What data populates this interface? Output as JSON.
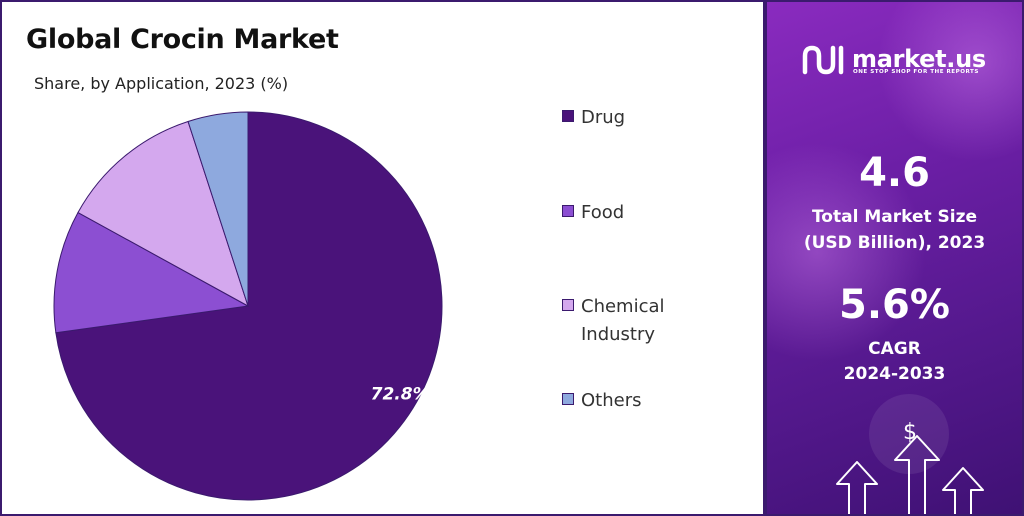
{
  "header": {
    "title": "Global Crocin Market",
    "subtitle": "Share, by Application, 2023 (%)"
  },
  "chart_data": {
    "type": "pie",
    "categories": [
      "Drug",
      "Food",
      "Chemical Industry",
      "Others"
    ],
    "values": [
      72.8,
      10.2,
      12.0,
      5.0
    ],
    "colors": [
      "#4a137a",
      "#8c4fd2",
      "#d4a8ee",
      "#8ea9de"
    ],
    "data_labels": [
      "72.8%",
      "",
      "",
      ""
    ],
    "legend_position": "right"
  },
  "legend": {
    "items": [
      {
        "lines": [
          "Drug"
        ]
      },
      {
        "lines": [
          "Food"
        ]
      },
      {
        "lines": [
          "Chemical",
          "Industry"
        ]
      },
      {
        "lines": [
          "Others"
        ]
      }
    ]
  },
  "sidebar": {
    "brand_name": "market.us",
    "brand_tagline": "ONE STOP SHOP FOR THE REPORTS",
    "market_size_value": "4.6",
    "market_size_label_line1": "Total Market Size",
    "market_size_label_line2": "(USD Billion), 2023",
    "cagr_value": "5.6%",
    "cagr_label_line1": "CAGR",
    "cagr_label_line2": "2024-2033",
    "dollar_symbol": "$"
  }
}
